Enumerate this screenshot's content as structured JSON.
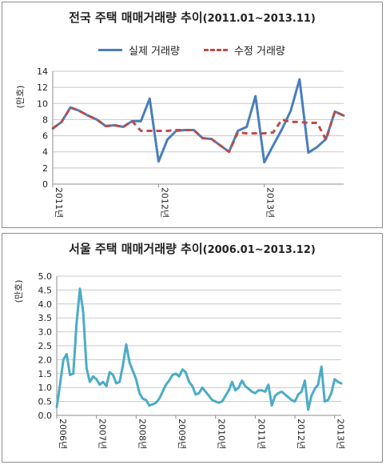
{
  "chart_data": [
    {
      "type": "line",
      "title": "전국 주택 매매거래량 추이",
      "subtitle": "(2011.01~2013.11)",
      "ylabel": "(만호)",
      "ylim": [
        0,
        14
      ],
      "yticks": [
        "0",
        "2",
        "4",
        "6",
        "8",
        "10",
        "12",
        "14"
      ],
      "xtick_labels": [
        "2011년",
        "2012년",
        "2013년"
      ],
      "grid": true,
      "legend_position": "top",
      "series": [
        {
          "name": "실제 거래량",
          "color": "#4a7ebb",
          "style": "solid",
          "values": [
            6.9,
            7.7,
            9.5,
            9.1,
            8.5,
            8.0,
            7.2,
            7.3,
            7.1,
            7.8,
            7.8,
            10.6,
            2.8,
            5.5,
            6.6,
            6.7,
            6.7,
            5.7,
            5.6,
            4.8,
            4.0,
            6.6,
            7.1,
            10.9,
            2.7,
            4.8,
            6.8,
            9.1,
            13.0,
            3.9,
            4.6,
            5.6,
            9.0,
            8.5
          ]
        },
        {
          "name": "수정 거래량",
          "color": "#be4b48",
          "style": "dashed",
          "values": [
            6.9,
            7.7,
            9.5,
            9.1,
            8.5,
            8.0,
            7.2,
            7.3,
            7.1,
            7.8,
            6.6,
            6.6,
            6.6,
            6.6,
            6.7,
            6.7,
            6.7,
            5.7,
            5.6,
            4.8,
            4.0,
            6.4,
            6.3,
            6.3,
            6.3,
            6.4,
            8.0,
            7.7,
            7.7,
            7.6,
            7.6,
            5.5,
            9.0,
            8.5
          ]
        }
      ]
    },
    {
      "type": "line",
      "title": "서울 주택 매매거래량 추이",
      "subtitle": "(2006.01~2013.12)",
      "ylabel": "(만호)",
      "ylim": [
        0,
        5
      ],
      "yticks": [
        "0.0",
        "0.5",
        "1.0",
        "1.5",
        "2.0",
        "2.5",
        "3.0",
        "3.5",
        "4.0",
        "4.5",
        "5.0"
      ],
      "xtick_labels": [
        "2006년",
        "2007년",
        "2008년",
        "2009년",
        "2010년",
        "2011년",
        "2012년",
        "2013년"
      ],
      "grid": true,
      "series": [
        {
          "color": "#4bacc6",
          "style": "solid",
          "values": [
            0.3,
            1.1,
            2.0,
            2.2,
            1.45,
            1.5,
            3.3,
            4.55,
            3.7,
            1.7,
            1.2,
            1.4,
            1.3,
            1.1,
            1.2,
            1.05,
            1.55,
            1.45,
            1.15,
            1.2,
            1.8,
            2.55,
            1.9,
            1.6,
            1.3,
            0.8,
            0.6,
            0.55,
            0.35,
            0.4,
            0.45,
            0.6,
            0.85,
            1.1,
            1.25,
            1.45,
            1.5,
            1.4,
            1.65,
            1.55,
            1.2,
            1.05,
            0.75,
            0.8,
            1.0,
            0.85,
            0.7,
            0.55,
            0.5,
            0.45,
            0.5,
            0.7,
            0.9,
            1.2,
            0.9,
            1.0,
            1.25,
            1.05,
            0.95,
            0.85,
            0.8,
            0.9,
            0.9,
            0.85,
            1.1,
            0.35,
            0.7,
            0.8,
            0.85,
            0.75,
            0.65,
            0.55,
            0.5,
            0.75,
            0.85,
            1.25,
            0.2,
            0.7,
            0.95,
            1.1,
            1.75,
            0.5,
            0.55,
            0.8,
            1.3,
            1.2,
            1.15
          ]
        }
      ]
    }
  ]
}
